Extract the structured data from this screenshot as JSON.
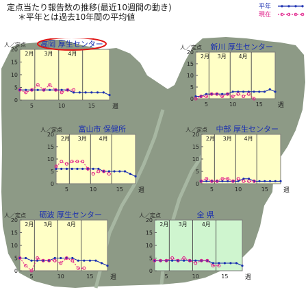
{
  "header": {
    "line1": "定点当たり報告数の推移(最近10週間の動き)",
    "line2": "＊平年とは過去10年間の平均値"
  },
  "legend": {
    "normal_label": "平年",
    "current_label": "現在",
    "normal_color": "#1a2fb0",
    "current_color": "#e0208a"
  },
  "colors": {
    "map_land": "#8d9a86",
    "map_river": "#a7b7a2",
    "panel_yellow": "#ffffc6",
    "panel_green": "#cff5cf",
    "panel_border": "#7a7a7a",
    "text_blue": "#1a2fb0",
    "highlight_ellipse": "#e01515"
  },
  "common": {
    "y_unit": "人／定点",
    "x_unit": "週",
    "month_labels": [
      "2月",
      "3月",
      "4月"
    ],
    "x_ticks": [
      5,
      10,
      15
    ],
    "y_ticks": [
      0,
      5,
      10,
      15,
      20
    ]
  },
  "chart_data": [
    {
      "type": "line",
      "title": "高岡 厚生センター",
      "x": [
        3,
        4,
        5,
        6,
        7,
        8,
        9,
        10,
        11,
        12,
        13,
        14,
        15,
        16,
        17,
        18
      ],
      "ylim": [
        0,
        20
      ],
      "xlim": [
        3,
        18
      ],
      "highlight": true,
      "series": [
        {
          "name": "平年",
          "values": [
            4,
            4,
            4,
            4,
            4,
            4,
            4,
            4,
            4,
            3,
            3,
            3,
            3,
            3,
            3,
            2
          ]
        },
        {
          "name": "現在",
          "values": [
            4,
            3,
            4,
            6,
            4,
            6,
            4,
            3,
            4,
            4,
            null,
            null,
            null,
            null,
            null,
            null
          ]
        }
      ]
    },
    {
      "type": "line",
      "title": "新川 厚生センター",
      "x": [
        3,
        4,
        5,
        6,
        7,
        8,
        9,
        10,
        11,
        12,
        13,
        14,
        15,
        16,
        17,
        18
      ],
      "ylim": [
        0,
        20
      ],
      "xlim": [
        3,
        18
      ],
      "series": [
        {
          "name": "平年",
          "values": [
            1,
            1,
            2,
            2,
            2,
            2,
            2,
            3,
            3,
            3,
            3,
            3,
            3,
            3,
            4,
            3
          ]
        },
        {
          "name": "現在",
          "values": [
            0,
            1,
            1,
            2,
            2,
            1,
            2,
            1,
            2,
            1,
            2,
            0,
            null,
            null,
            null,
            null
          ]
        }
      ]
    },
    {
      "type": "line",
      "title": "富山市 保健所",
      "x": [
        3,
        4,
        5,
        6,
        7,
        8,
        9,
        10,
        11,
        12,
        13,
        14,
        15,
        16,
        17,
        18
      ],
      "ylim": [
        0,
        20
      ],
      "xlim": [
        3,
        18
      ],
      "series": [
        {
          "name": "平年",
          "values": [
            6,
            6,
            6,
            6,
            6,
            6,
            6,
            6,
            6,
            5,
            5,
            5,
            5,
            5,
            4,
            3
          ]
        },
        {
          "name": "現在",
          "values": [
            7,
            9,
            8,
            9,
            9,
            9,
            6,
            4,
            5,
            5,
            4,
            null,
            null,
            null,
            null,
            null
          ]
        }
      ]
    },
    {
      "type": "line",
      "title": "中部 厚生センター",
      "x": [
        3,
        4,
        5,
        6,
        7,
        8,
        9,
        10,
        11,
        12,
        13,
        14,
        15,
        16,
        17,
        18
      ],
      "ylim": [
        0,
        20
      ],
      "xlim": [
        3,
        18
      ],
      "series": [
        {
          "name": "平年",
          "values": [
            1,
            1,
            1,
            1,
            1,
            1,
            1,
            1,
            2,
            2,
            1,
            1,
            1,
            1,
            1,
            1
          ]
        },
        {
          "name": "現在",
          "values": [
            1,
            2,
            1,
            1,
            2,
            2,
            1,
            2,
            1,
            1,
            1,
            null,
            null,
            null,
            null,
            null
          ]
        }
      ]
    },
    {
      "type": "line",
      "title": "砺波 厚生センター",
      "x": [
        3,
        4,
        5,
        6,
        7,
        8,
        9,
        10,
        11,
        12,
        13,
        14,
        15,
        16,
        17,
        18
      ],
      "ylim": [
        0,
        20
      ],
      "xlim": [
        3,
        18
      ],
      "series": [
        {
          "name": "平年",
          "values": [
            5,
            5,
            4,
            4,
            4,
            4,
            5,
            5,
            5,
            5,
            4,
            4,
            4,
            4,
            3,
            2
          ]
        },
        {
          "name": "現在",
          "values": [
            5,
            2,
            0,
            5,
            4,
            4,
            4,
            3,
            5,
            4,
            1,
            1,
            null,
            null,
            null,
            null
          ]
        }
      ]
    },
    {
      "type": "line",
      "title": "全 県",
      "x": [
        3,
        4,
        5,
        6,
        7,
        8,
        9,
        10,
        11,
        12,
        13,
        14,
        15,
        16,
        17,
        18
      ],
      "ylim": [
        0,
        20
      ],
      "xlim": [
        3,
        18
      ],
      "green": true,
      "series": [
        {
          "name": "平年",
          "values": [
            4,
            4,
            4,
            4,
            4,
            4,
            4,
            4,
            4,
            4,
            3,
            3,
            3,
            3,
            3,
            2
          ]
        },
        {
          "name": "現在",
          "values": [
            4,
            4,
            4,
            5,
            4,
            5,
            4,
            3,
            4,
            4,
            2,
            2,
            null,
            null,
            null,
            null
          ]
        }
      ]
    }
  ]
}
